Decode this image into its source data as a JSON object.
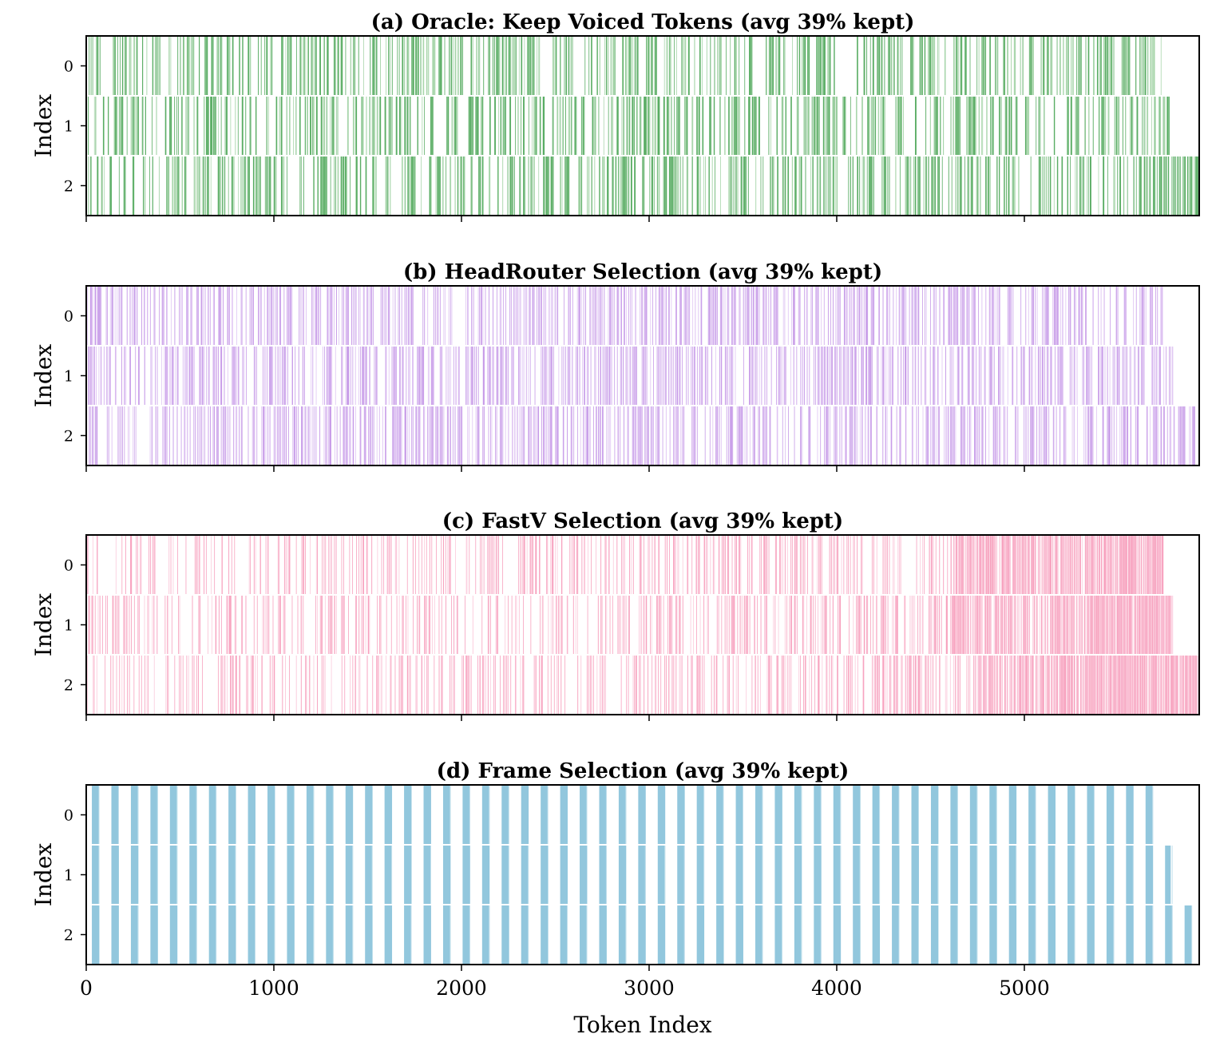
{
  "chart_data": {
    "type": "heatmap",
    "xlabel": "Token Index",
    "xlim": [
      0,
      5932
    ],
    "xticks": [
      "0",
      "1000",
      "2000",
      "3000",
      "4000",
      "5000"
    ],
    "xtick_values": [
      0,
      1000,
      2000,
      3000,
      4000,
      5000
    ],
    "panels": [
      {
        "title": "(a) Oracle: Keep Voiced Tokens  (avg 39% kept)",
        "ylabel": "Index",
        "yticks": [
          "0",
          "1",
          "2"
        ],
        "color": "#5aad64",
        "light_color": "#a9d6ac",
        "pattern": "voiced-segments",
        "row_lengths": [
          5730,
          5785,
          5932
        ],
        "kept_fraction": 0.39
      },
      {
        "title": "(b) HeadRouter Selection  (avg 39% kept)",
        "ylabel": "Index",
        "yticks": [
          "0",
          "1",
          "2"
        ],
        "color": "#c79be8",
        "light_color": "#dfc4f3",
        "pattern": "scattered",
        "row_lengths": [
          5740,
          5790,
          5932
        ],
        "kept_fraction": 0.39
      },
      {
        "title": "(c) FastV Selection  (avg 39% kept)",
        "ylabel": "Index",
        "yticks": [
          "0",
          "1",
          "2"
        ],
        "color": "#f7a1be",
        "light_color": "#fbcadb",
        "pattern": "sparse-then-dense-tail",
        "row_lengths": [
          5740,
          5790,
          5932
        ],
        "dense_tail_start": [
          4620,
          4620,
          4740
        ],
        "kept_fraction": 0.39
      },
      {
        "title": "(d) Frame Selection  (avg 39% kept)",
        "ylabel": "Index",
        "yticks": [
          "0",
          "1",
          "2"
        ],
        "color": "#92c7dd",
        "light_color": "#c3e0ec",
        "pattern": "periodic-frames",
        "row_lengths": [
          5710,
          5780,
          5932
        ],
        "frame_period_tokens": 104,
        "frame_kept_tokens": 40,
        "kept_fraction": 0.39
      }
    ]
  }
}
